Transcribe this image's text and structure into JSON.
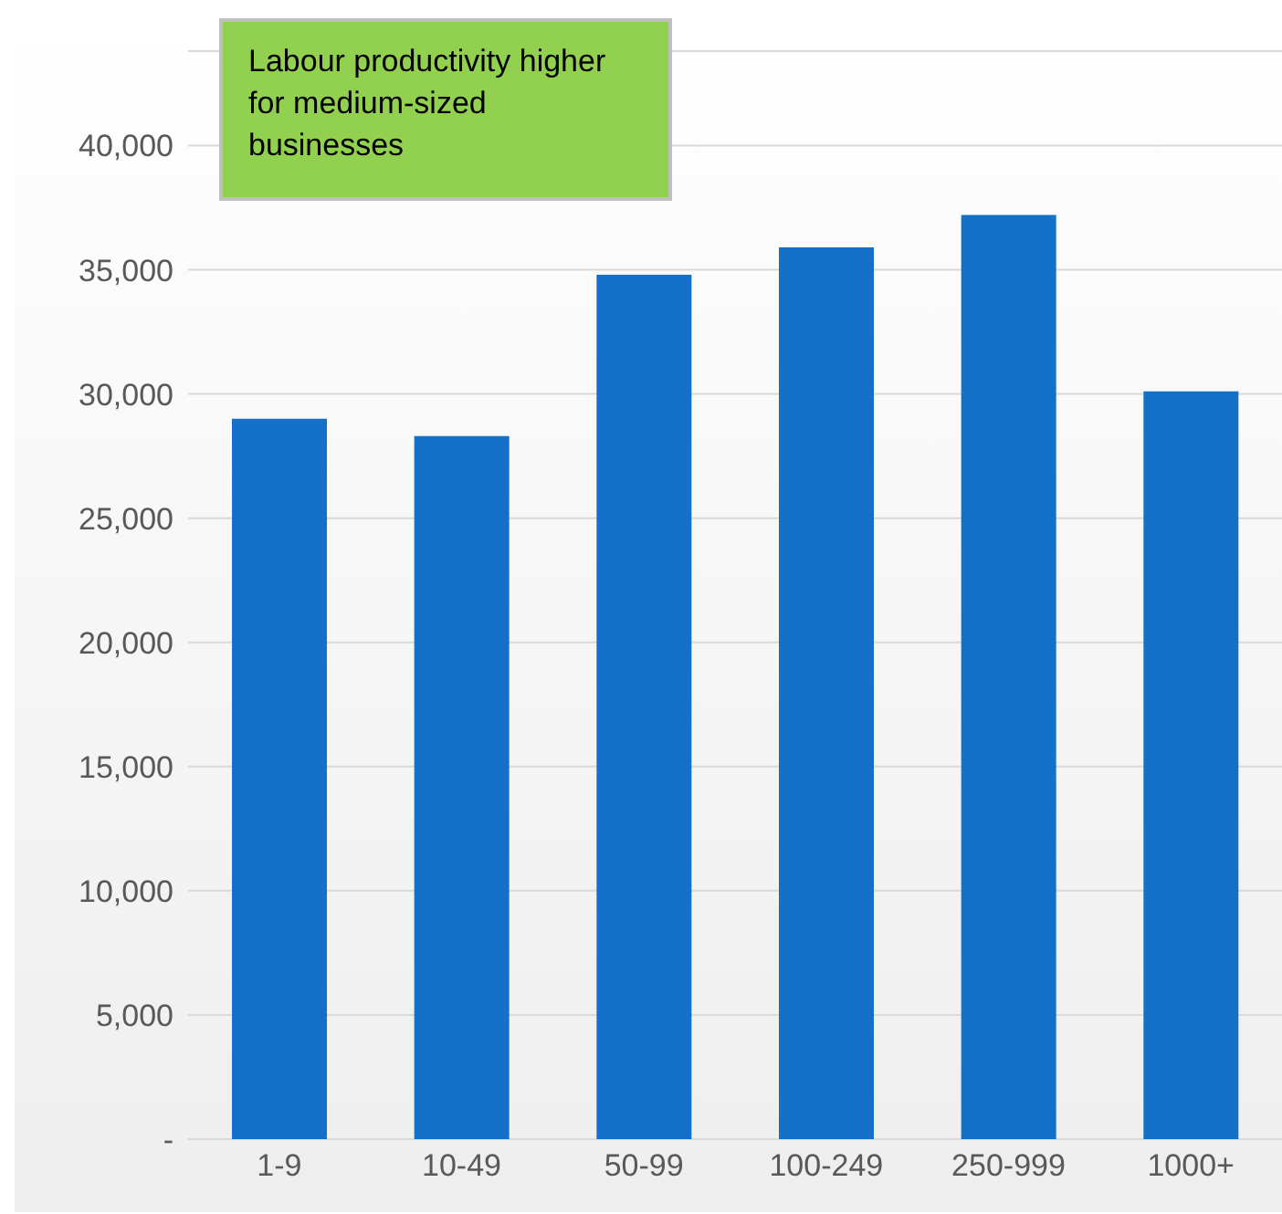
{
  "chart_data": {
    "type": "bar",
    "categories": [
      "1-9",
      "10-49",
      "50-99",
      "100-249",
      "250-999",
      "1000+"
    ],
    "values": [
      29000,
      28300,
      34800,
      35900,
      37200,
      30100
    ],
    "color": "#1570c8",
    "ylim": [
      0,
      43800
    ],
    "yticks": [
      {
        "value": 0,
        "label": "-"
      },
      {
        "value": 5000,
        "label": "5,000"
      },
      {
        "value": 10000,
        "label": "10,000"
      },
      {
        "value": 15000,
        "label": "15,000"
      },
      {
        "value": 20000,
        "label": "20,000"
      },
      {
        "value": 25000,
        "label": "25,000"
      },
      {
        "value": 30000,
        "label": "30,000"
      },
      {
        "value": 35000,
        "label": "35,000"
      },
      {
        "value": 40000,
        "label": "40,000"
      }
    ],
    "grid": "y",
    "legend": false,
    "annotations": [
      "Labour productivity higher for medium-sized businesses"
    ]
  }
}
